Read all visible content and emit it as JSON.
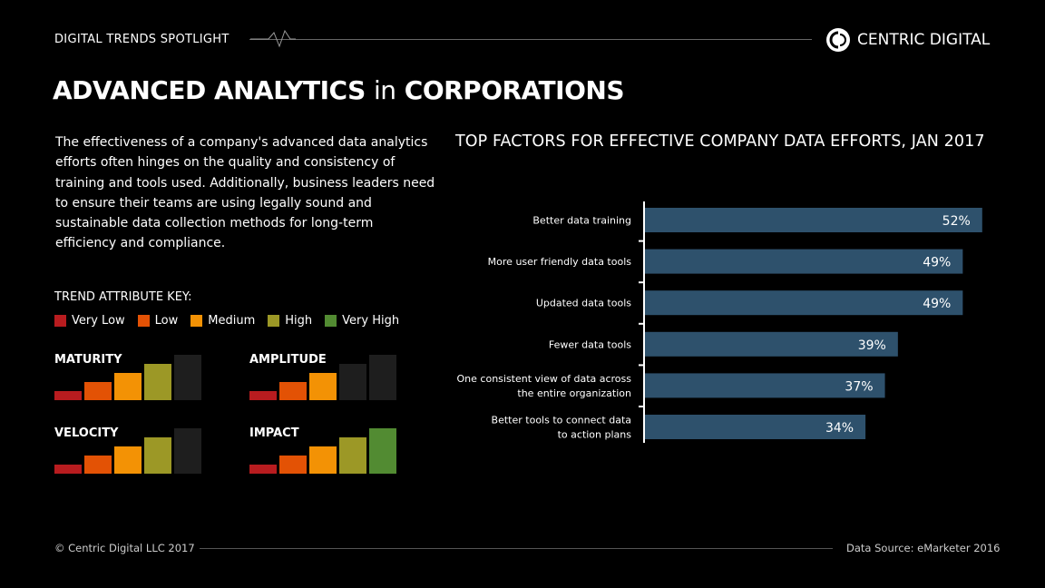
{
  "header": {
    "spotlight": "DIGITAL TRENDS SPOTLIGHT",
    "brand": "CENTRIC DIGITAL"
  },
  "title": {
    "part1": "ADVANCED ANALYTICS",
    "part2": "in",
    "part3": "CORPORATIONS"
  },
  "intro": "The effectiveness of a company's advanced data analytics efforts often hinges on the quality and consistency of training and tools used. Additionally, business leaders need to ensure their teams are using legally sound and sustainable data collection methods for long-term efficiency and compliance.",
  "key": {
    "title": "TREND ATTRIBUTE KEY:",
    "levels": [
      {
        "label": "Very Low",
        "color": "#b81c1f"
      },
      {
        "label": "Low",
        "color": "#e35205"
      },
      {
        "label": "Medium",
        "color": "#f39205"
      },
      {
        "label": "High",
        "color": "#9c9826"
      },
      {
        "label": "Very High",
        "color": "#528b32"
      }
    ],
    "empty_color": "#1e1e1e"
  },
  "attributes": [
    {
      "name": "MATURITY",
      "level": 4
    },
    {
      "name": "AMPLITUDE",
      "level": 3
    },
    {
      "name": "VELOCITY",
      "level": 4
    },
    {
      "name": "IMPACT",
      "level": 5
    }
  ],
  "chart_data": {
    "type": "bar",
    "orientation": "horizontal",
    "title": "TOP FACTORS FOR EFFECTIVE COMPANY DATA EFFORTS, JAN 2017",
    "categories": [
      [
        "Better data training"
      ],
      [
        "More user friendly data tools"
      ],
      [
        "Updated data tools"
      ],
      [
        "Fewer data tools"
      ],
      [
        "One consistent view of data across",
        "the entire organization"
      ],
      [
        "Better tools to connect data",
        "to action plans"
      ]
    ],
    "values": [
      52,
      49,
      49,
      39,
      37,
      34
    ],
    "labels": [
      "52%",
      "49%",
      "49%",
      "39%",
      "37%",
      "34%"
    ],
    "color": "#2e516c",
    "xlim": [
      0,
      52
    ]
  },
  "footer": {
    "copyright": "© Centric Digital LLC 2017",
    "source": "Data Source: eMarketer 2016"
  }
}
